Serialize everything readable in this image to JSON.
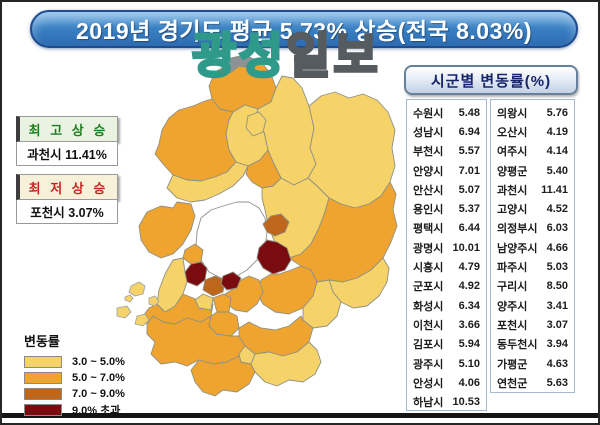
{
  "banner": {
    "text": "2019년 경기도 평균 5.73% 상승(전국 8.03%)"
  },
  "watermark": {
    "left_text": "광성",
    "right_text": "일보",
    "left_color": "#2f9a8a",
    "right_color": "#565b60"
  },
  "info_boxes": [
    {
      "title": "최 고 상 승",
      "value": "과천시 11.41%",
      "title_color": "#1e7d1e",
      "title_bg": "#eaf2e2"
    },
    {
      "title": "최 저 상 승",
      "value": "포천시 3.07%",
      "title_color": "#c92323",
      "title_bg": "#f7f1d9"
    }
  ],
  "legend": {
    "title": "변동률",
    "items": [
      {
        "label": "3.0 ~ 5.0%",
        "color": "#F6D368"
      },
      {
        "label": "5.0 ~ 7.0%",
        "color": "#EFA42F"
      },
      {
        "label": "7.0 ~ 9.0%",
        "color": "#BE661B"
      },
      {
        "label": "9.0% 초과",
        "color": "#7A0C10"
      }
    ]
  },
  "table": {
    "title": "시군별 변동률(%)",
    "left": [
      [
        "수원시",
        "5.48"
      ],
      [
        "성남시",
        "6.94"
      ],
      [
        "부천시",
        "5.57"
      ],
      [
        "안양시",
        "7.01"
      ],
      [
        "안산시",
        "5.07"
      ],
      [
        "용인시",
        "5.37"
      ],
      [
        "평택시",
        "6.44"
      ],
      [
        "광명시",
        "10.01"
      ],
      [
        "시흥시",
        "4.79"
      ],
      [
        "군포시",
        "4.92"
      ],
      [
        "화성시",
        "6.34"
      ],
      [
        "이천시",
        "3.66"
      ],
      [
        "김포시",
        "5.94"
      ],
      [
        "광주시",
        "5.10"
      ],
      [
        "안성시",
        "4.06"
      ],
      [
        "하남시",
        "10.53"
      ]
    ],
    "right": [
      [
        "의왕시",
        "5.76"
      ],
      [
        "오산시",
        "4.19"
      ],
      [
        "여주시",
        "4.14"
      ],
      [
        "양평군",
        "5.40"
      ],
      [
        "과천시",
        "11.41"
      ],
      [
        "고양시",
        "4.52"
      ],
      [
        "의정부시",
        "6.03"
      ],
      [
        "남양주시",
        "4.66"
      ],
      [
        "파주시",
        "5.03"
      ],
      [
        "구리시",
        "8.50"
      ],
      [
        "양주시",
        "3.41"
      ],
      [
        "포천시",
        "3.07"
      ],
      [
        "동두천시",
        "3.94"
      ],
      [
        "가평군",
        "4.63"
      ],
      [
        "연천군",
        "5.63"
      ]
    ]
  },
  "chart_data": {
    "type": "heatmap",
    "title": "2019년 경기도 평균 5.73% 상승(전국 8.03%)",
    "subtitle": "시군별 변동률(%)",
    "unit": "%",
    "gyeonggi_average": 5.73,
    "national_average": 8.03,
    "highest": {
      "label": "최고상승",
      "name": "과천시",
      "value": 11.41
    },
    "lowest": {
      "label": "최저상승",
      "name": "포천시",
      "value": 3.07
    },
    "legend_bands": [
      {
        "range": "3.0 ~ 5.0%",
        "color": "#F6D368"
      },
      {
        "range": "5.0 ~ 7.0%",
        "color": "#EFA42F"
      },
      {
        "range": "7.0 ~ 9.0%",
        "color": "#BE661B"
      },
      {
        "range": "9.0% 초과",
        "color": "#7A0C10"
      }
    ],
    "categories": [
      "수원시",
      "성남시",
      "부천시",
      "안양시",
      "안산시",
      "용인시",
      "평택시",
      "광명시",
      "시흥시",
      "군포시",
      "화성시",
      "이천시",
      "김포시",
      "광주시",
      "안성시",
      "하남시",
      "의왕시",
      "오산시",
      "여주시",
      "양평군",
      "과천시",
      "고양시",
      "의정부시",
      "남양주시",
      "파주시",
      "구리시",
      "양주시",
      "포천시",
      "동두천시",
      "가평군",
      "연천군"
    ],
    "values": [
      5.48,
      6.94,
      5.57,
      7.01,
      5.07,
      5.37,
      6.44,
      10.01,
      4.79,
      4.92,
      6.34,
      3.66,
      5.94,
      5.1,
      4.06,
      10.53,
      5.76,
      4.19,
      4.14,
      5.4,
      11.41,
      4.52,
      6.03,
      4.66,
      5.03,
      8.5,
      3.41,
      3.07,
      3.94,
      4.63,
      5.63
    ]
  },
  "map": {
    "dmz_color": "#8d9297",
    "seoul_fill": "#ffffff",
    "bands": {
      "yeoncheon": 1,
      "pocheon": 0,
      "gapyeong": 0,
      "paju": 1,
      "yangju": 0,
      "dongducheon": 0,
      "uijeongbu": 1,
      "goyang": 0,
      "namyangju": 0,
      "gimpo": 1,
      "bucheon": 1,
      "gwangmyeong": 3,
      "siheung": 0,
      "ansan": 1,
      "anyang": 2,
      "gwacheon": 3,
      "gunpo": 0,
      "uiwang": 1,
      "seongnam": 1,
      "hanam": 3,
      "guri": 2,
      "gwangju": 1,
      "yangpyeong": 1,
      "yeoju": 0,
      "icheon": 0,
      "yongin": 1,
      "suwon": 1,
      "hwaseong": 1,
      "osan": 0,
      "pyeongtaek": 1,
      "anseong": 0,
      "islands": 0
    }
  }
}
